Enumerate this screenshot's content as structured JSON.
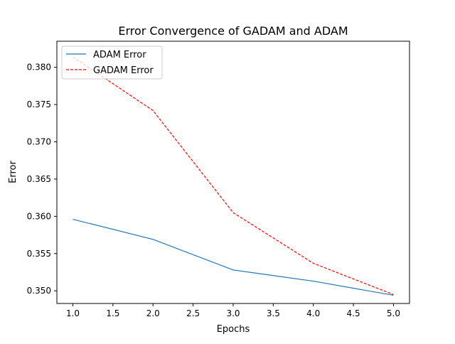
{
  "chart_data": {
    "type": "line",
    "title": "Error Convergence of GADAM and ADAM",
    "xlabel": "Epochs",
    "ylabel": "Error",
    "xlim": [
      0.8,
      5.2
    ],
    "ylim": [
      0.3483,
      0.3835
    ],
    "x_ticks": [
      "1.0",
      "1.5",
      "2.0",
      "2.5",
      "3.0",
      "3.5",
      "4.0",
      "4.5",
      "5.0"
    ],
    "y_ticks": [
      "0.350",
      "0.355",
      "0.360",
      "0.365",
      "0.370",
      "0.375",
      "0.380"
    ],
    "grid": false,
    "legend_position": "top-left",
    "series": [
      {
        "name": "ADAM Error",
        "color": "#1f77b4",
        "line_style": "solid",
        "x": [
          1,
          2,
          3,
          4,
          5
        ],
        "y": [
          0.3596,
          0.3569,
          0.3528,
          0.3513,
          0.3494
        ]
      },
      {
        "name": "GADAM Error",
        "color": "#ff0000",
        "line_style": "dashed",
        "x": [
          1,
          2,
          3,
          4,
          5
        ],
        "y": [
          0.3814,
          0.3742,
          0.3605,
          0.3537,
          0.3495
        ]
      }
    ]
  }
}
